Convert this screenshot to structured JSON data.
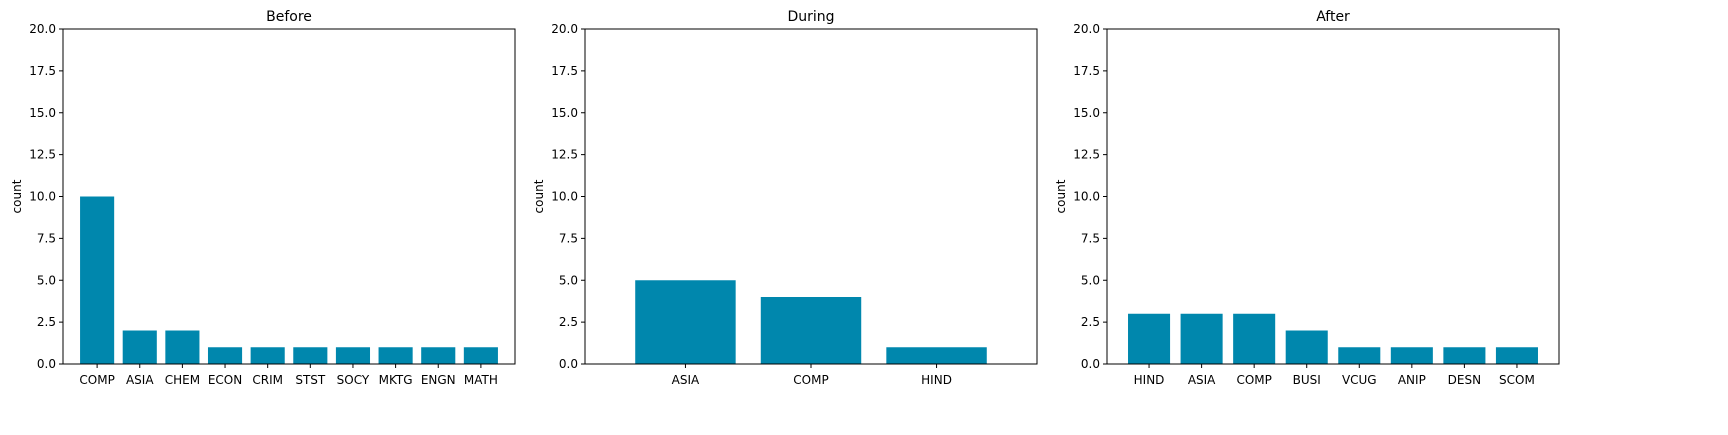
{
  "chart_data": [
    {
      "type": "bar",
      "title": "Before",
      "ylabel": "count",
      "xlabel": "",
      "ylim": [
        0,
        20
      ],
      "yticks": [
        0.0,
        2.5,
        5.0,
        7.5,
        10.0,
        12.5,
        15.0,
        17.5,
        20.0
      ],
      "categories": [
        "COMP",
        "ASIA",
        "CHEM",
        "ECON",
        "CRIM",
        "STST",
        "SOCY",
        "MKTG",
        "ENGN",
        "MATH"
      ],
      "values": [
        10,
        2,
        2,
        1,
        1,
        1,
        1,
        1,
        1,
        1
      ],
      "color": "#0087ad",
      "grid": false
    },
    {
      "type": "bar",
      "title": "During",
      "ylabel": "count",
      "xlabel": "",
      "ylim": [
        0,
        20
      ],
      "yticks": [
        0.0,
        2.5,
        5.0,
        7.5,
        10.0,
        12.5,
        15.0,
        17.5,
        20.0
      ],
      "categories": [
        "ASIA",
        "COMP",
        "HIND"
      ],
      "values": [
        5,
        4,
        1
      ],
      "color": "#0087ad",
      "grid": false
    },
    {
      "type": "bar",
      "title": "After",
      "ylabel": "count",
      "xlabel": "",
      "ylim": [
        0,
        20
      ],
      "yticks": [
        0.0,
        2.5,
        5.0,
        7.5,
        10.0,
        12.5,
        15.0,
        17.5,
        20.0
      ],
      "categories": [
        "HIND",
        "ASIA",
        "COMP",
        "BUSI",
        "VCUG",
        "ANIP",
        "DESN",
        "SCOM"
      ],
      "values": [
        3,
        3,
        3,
        2,
        1,
        1,
        1,
        1
      ],
      "color": "#0087ad",
      "grid": false
    }
  ]
}
